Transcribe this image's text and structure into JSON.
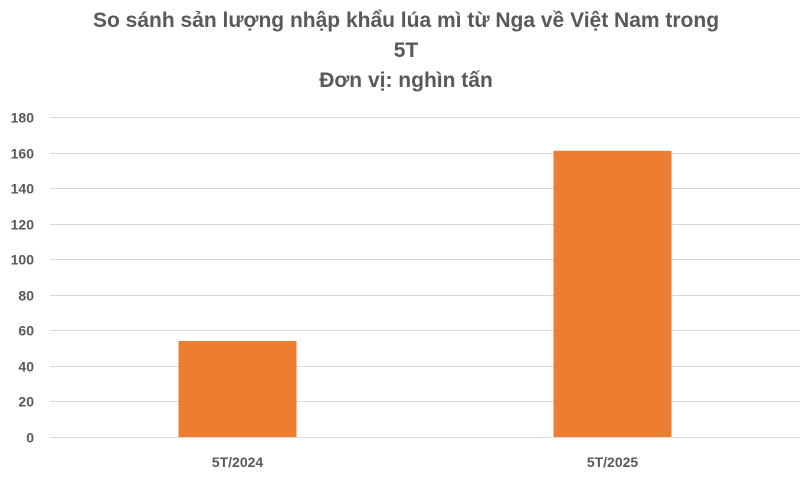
{
  "chart_data": {
    "type": "bar",
    "title_lines": [
      "So sánh sản lượng nhập khẩu lúa mì từ Nga về Việt Nam trong",
      "5T",
      "Đơn vị: nghìn tấn"
    ],
    "categories": [
      "5T/2024",
      "5T/2025"
    ],
    "values": [
      54,
      161
    ],
    "ylim": [
      0,
      180
    ],
    "yticks": [
      0,
      20,
      40,
      60,
      80,
      100,
      120,
      140,
      160,
      180
    ],
    "xlabel": "",
    "ylabel": "",
    "grid": true,
    "legend": "none",
    "bar_color": "#ED7D31",
    "grid_color": "#D9D9D9",
    "text_color": "#595959"
  }
}
